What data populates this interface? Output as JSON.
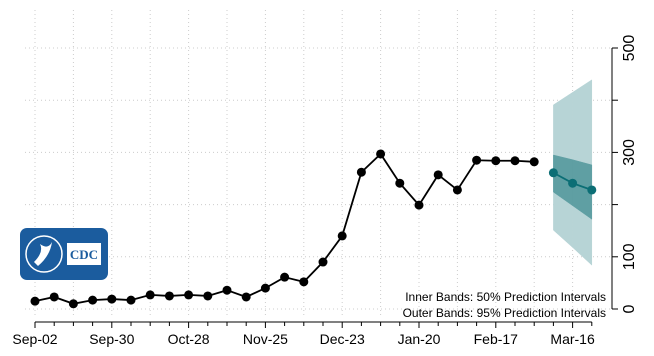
{
  "chart_data": {
    "type": "line",
    "categories": [
      "Sep-02",
      null,
      null,
      null,
      "Sep-30",
      null,
      null,
      null,
      "Oct-28",
      null,
      null,
      null,
      "Nov-25",
      null,
      null,
      null,
      "Dec-23",
      null,
      null,
      null,
      "Jan-20",
      null,
      null,
      null,
      "Feb-17",
      null,
      null,
      null,
      "Mar-16",
      null
    ],
    "series": [
      {
        "color": "#000000",
        "values": [
          15,
          23,
          10,
          17,
          19,
          17,
          27,
          25,
          27,
          25,
          36,
          23,
          40,
          61,
          52,
          90,
          140,
          262,
          297,
          241,
          199,
          257,
          228,
          285,
          284,
          284,
          282,
          null,
          null,
          null
        ]
      },
      {
        "color": "#0b6e75",
        "values": [
          null,
          null,
          null,
          null,
          null,
          null,
          null,
          null,
          null,
          null,
          null,
          null,
          null,
          null,
          null,
          null,
          null,
          null,
          null,
          null,
          null,
          null,
          null,
          null,
          null,
          null,
          null,
          261,
          241,
          228
        ],
        "lower_50": [
          null,
          null,
          null,
          null,
          null,
          null,
          null,
          null,
          null,
          null,
          null,
          null,
          null,
          null,
          null,
          null,
          null,
          null,
          null,
          null,
          null,
          null,
          null,
          null,
          null,
          null,
          null,
          224,
          198,
          172
        ],
        "upper_50": [
          null,
          null,
          null,
          null,
          null,
          null,
          null,
          null,
          null,
          null,
          null,
          null,
          null,
          null,
          null,
          null,
          null,
          null,
          null,
          null,
          null,
          null,
          null,
          null,
          null,
          null,
          null,
          295,
          286,
          276
        ],
        "lower_95": [
          null,
          null,
          null,
          null,
          null,
          null,
          null,
          null,
          null,
          null,
          null,
          null,
          null,
          null,
          null,
          null,
          null,
          null,
          null,
          null,
          null,
          null,
          null,
          null,
          null,
          null,
          null,
          151,
          118,
          84
        ],
        "upper_95": [
          null,
          null,
          null,
          null,
          null,
          null,
          null,
          null,
          null,
          null,
          null,
          null,
          null,
          null,
          null,
          null,
          null,
          null,
          null,
          null,
          null,
          null,
          null,
          null,
          null,
          null,
          null,
          391,
          415,
          439
        ],
        "color_50": "#5f9fa3",
        "color_95": "#b7d4d6"
      }
    ],
    "ylim": [
      0,
      500
    ],
    "yticks": [
      0,
      100,
      300,
      500
    ],
    "ygrid": [
      0,
      100,
      200,
      300,
      400,
      500
    ],
    "y_axis_side": "right",
    "grid": true,
    "annotations": [
      "Inner Bands: 50% Prediction Intervals",
      "Outer Bands: 95% Prediction Intervals"
    ],
    "logo_text": "CDC"
  }
}
